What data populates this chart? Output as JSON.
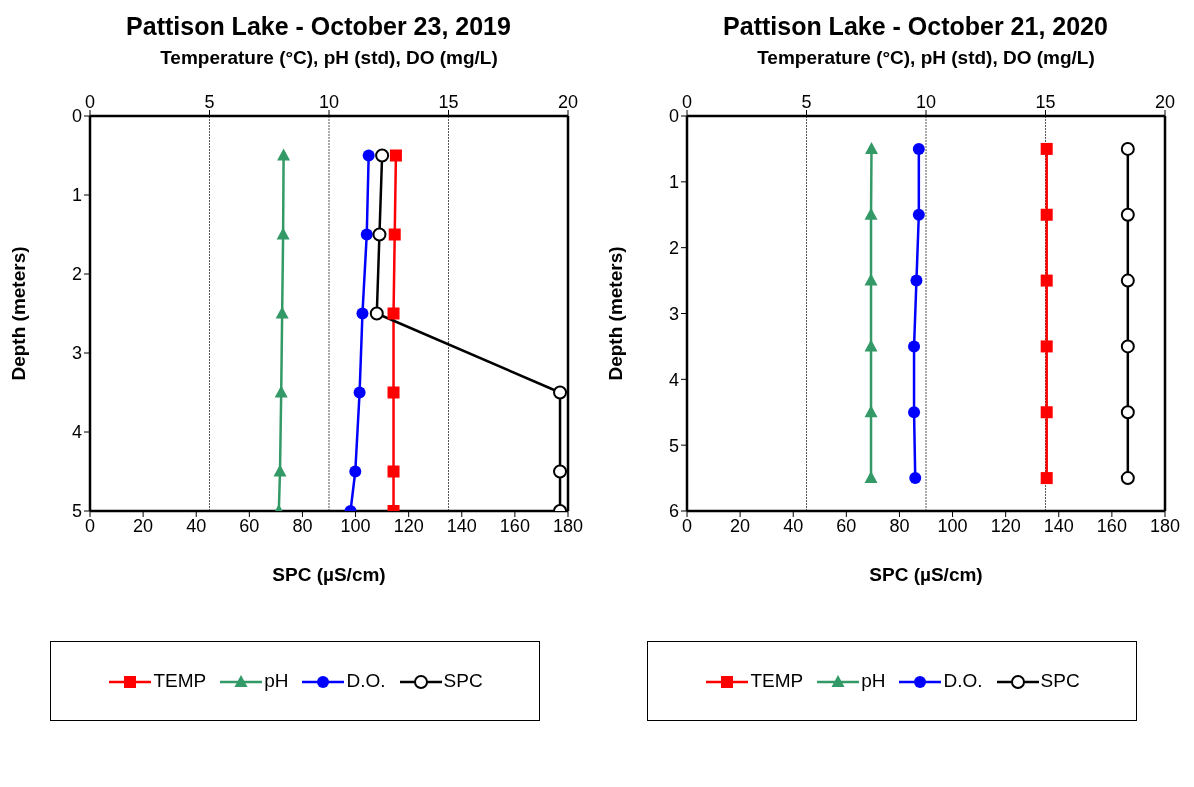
{
  "chart_data": [
    {
      "type": "line",
      "title": "Pattison Lake - October 23, 2019",
      "x2label": "Temperature (°C), pH (std), DO (mg/L)",
      "xlabel": "SPC (µS/cm)",
      "ylabel": "Depth (meters)",
      "x2lim": [
        0,
        20
      ],
      "x2ticks": [
        0,
        5,
        10,
        15,
        20
      ],
      "xlim": [
        0,
        180
      ],
      "xticks": [
        0,
        20,
        40,
        60,
        80,
        100,
        120,
        140,
        160,
        180
      ],
      "ylim": [
        5,
        0
      ],
      "yticks": [
        0,
        1,
        2,
        3,
        4,
        5
      ],
      "grid": "x",
      "legend": "bottom",
      "line_style": "solid",
      "series": [
        {
          "name": "TEMP",
          "color": "#ff0000",
          "marker": "square",
          "axis": "x2",
          "x": [
            12.8,
            12.75,
            12.7,
            12.7,
            12.7,
            12.7
          ],
          "values": [
            0.5,
            1.5,
            2.5,
            3.5,
            4.5,
            5
          ]
        },
        {
          "name": "pH",
          "color": "#339966",
          "marker": "triangle",
          "axis": "x2",
          "x": [
            8.1,
            8.08,
            8.04,
            8.0,
            7.95,
            7.9
          ],
          "values": [
            0.5,
            1.5,
            2.5,
            3.5,
            4.5,
            5
          ]
        },
        {
          "name": "D.O.",
          "color": "#0000ff",
          "marker": "circle",
          "axis": "x2",
          "x": [
            11.66,
            11.58,
            11.4,
            11.28,
            11.1,
            10.9
          ],
          "values": [
            0.5,
            1.5,
            2.5,
            3.5,
            4.5,
            5
          ]
        },
        {
          "name": "SPC",
          "color": "#000000",
          "marker": "circle",
          "x": [
            110,
            109,
            108,
            177,
            177,
            177
          ],
          "values": [
            0.5,
            1.5,
            2.5,
            3.5,
            4.5,
            5
          ]
        }
      ]
    },
    {
      "type": "line",
      "title": "Pattison Lake - October 21, 2020",
      "x2label": "Temperature (°C), pH (std), DO (mg/L)",
      "xlabel": "SPC (µS/cm)",
      "ylabel": "Depth (meters)",
      "x2lim": [
        0,
        20
      ],
      "x2ticks": [
        0,
        5,
        10,
        15,
        20
      ],
      "xlim": [
        0,
        180
      ],
      "xticks": [
        0,
        20,
        40,
        60,
        80,
        100,
        120,
        140,
        160,
        180
      ],
      "ylim": [
        6,
        0
      ],
      "yticks": [
        0,
        1,
        2,
        3,
        4,
        5,
        6
      ],
      "grid": "x",
      "legend": "bottom",
      "line_style": "solid",
      "series": [
        {
          "name": "TEMP",
          "color": "#ff0000",
          "marker": "square",
          "axis": "x2",
          "x": [
            15.05,
            15.05,
            15.05,
            15.05,
            15.05,
            15.05
          ],
          "values": [
            0.5,
            1.5,
            2.5,
            3.5,
            4.5,
            5.5
          ]
        },
        {
          "name": "pH",
          "color": "#339966",
          "marker": "triangle",
          "axis": "x2",
          "x": [
            7.72,
            7.7,
            7.7,
            7.7,
            7.7,
            7.7
          ],
          "values": [
            0.5,
            1.5,
            2.5,
            3.5,
            4.5,
            5.5
          ]
        },
        {
          "name": "D.O.",
          "color": "#0000ff",
          "marker": "circle",
          "axis": "x2",
          "x": [
            9.7,
            9.7,
            9.6,
            9.5,
            9.5,
            9.55
          ],
          "values": [
            0.5,
            1.5,
            2.5,
            3.5,
            4.5,
            5.5
          ]
        },
        {
          "name": "SPC",
          "color": "#000000",
          "marker": "circle",
          "x": [
            166,
            166,
            166,
            166,
            166,
            166
          ],
          "values": [
            0.5,
            1.5,
            2.5,
            3.5,
            4.5,
            5.5
          ]
        }
      ]
    }
  ]
}
